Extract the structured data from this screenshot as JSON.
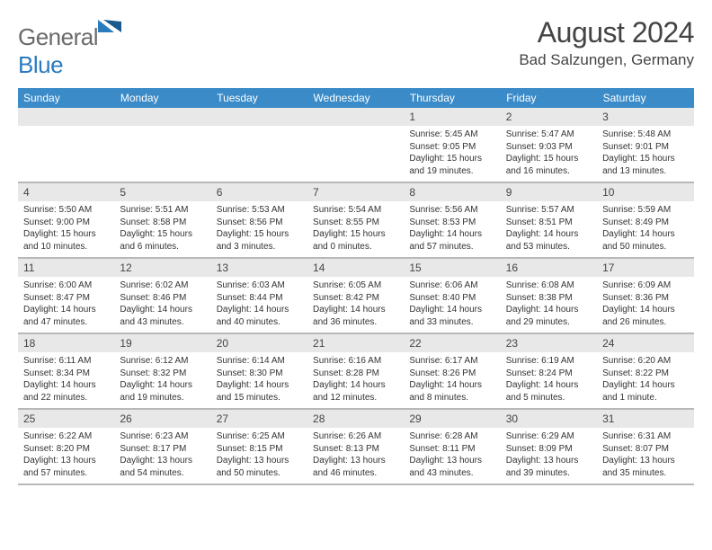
{
  "logo": {
    "text1": "General",
    "text2": "Blue",
    "icon_color": "#2b7bbf"
  },
  "title": "August 2024",
  "subtitle": "Bad Salzungen, Germany",
  "colors": {
    "header_bg": "#3b8bc8",
    "header_text": "#ffffff",
    "daynum_bg": "#e8e8e8",
    "text": "#333333",
    "divider": "#b8b8b8"
  },
  "weekdays": [
    "Sunday",
    "Monday",
    "Tuesday",
    "Wednesday",
    "Thursday",
    "Friday",
    "Saturday"
  ],
  "weeks": [
    [
      {
        "n": "",
        "sunrise": "",
        "sunset": "",
        "daylight": ""
      },
      {
        "n": "",
        "sunrise": "",
        "sunset": "",
        "daylight": ""
      },
      {
        "n": "",
        "sunrise": "",
        "sunset": "",
        "daylight": ""
      },
      {
        "n": "",
        "sunrise": "",
        "sunset": "",
        "daylight": ""
      },
      {
        "n": "1",
        "sunrise": "Sunrise: 5:45 AM",
        "sunset": "Sunset: 9:05 PM",
        "daylight": "Daylight: 15 hours and 19 minutes."
      },
      {
        "n": "2",
        "sunrise": "Sunrise: 5:47 AM",
        "sunset": "Sunset: 9:03 PM",
        "daylight": "Daylight: 15 hours and 16 minutes."
      },
      {
        "n": "3",
        "sunrise": "Sunrise: 5:48 AM",
        "sunset": "Sunset: 9:01 PM",
        "daylight": "Daylight: 15 hours and 13 minutes."
      }
    ],
    [
      {
        "n": "4",
        "sunrise": "Sunrise: 5:50 AM",
        "sunset": "Sunset: 9:00 PM",
        "daylight": "Daylight: 15 hours and 10 minutes."
      },
      {
        "n": "5",
        "sunrise": "Sunrise: 5:51 AM",
        "sunset": "Sunset: 8:58 PM",
        "daylight": "Daylight: 15 hours and 6 minutes."
      },
      {
        "n": "6",
        "sunrise": "Sunrise: 5:53 AM",
        "sunset": "Sunset: 8:56 PM",
        "daylight": "Daylight: 15 hours and 3 minutes."
      },
      {
        "n": "7",
        "sunrise": "Sunrise: 5:54 AM",
        "sunset": "Sunset: 8:55 PM",
        "daylight": "Daylight: 15 hours and 0 minutes."
      },
      {
        "n": "8",
        "sunrise": "Sunrise: 5:56 AM",
        "sunset": "Sunset: 8:53 PM",
        "daylight": "Daylight: 14 hours and 57 minutes."
      },
      {
        "n": "9",
        "sunrise": "Sunrise: 5:57 AM",
        "sunset": "Sunset: 8:51 PM",
        "daylight": "Daylight: 14 hours and 53 minutes."
      },
      {
        "n": "10",
        "sunrise": "Sunrise: 5:59 AM",
        "sunset": "Sunset: 8:49 PM",
        "daylight": "Daylight: 14 hours and 50 minutes."
      }
    ],
    [
      {
        "n": "11",
        "sunrise": "Sunrise: 6:00 AM",
        "sunset": "Sunset: 8:47 PM",
        "daylight": "Daylight: 14 hours and 47 minutes."
      },
      {
        "n": "12",
        "sunrise": "Sunrise: 6:02 AM",
        "sunset": "Sunset: 8:46 PM",
        "daylight": "Daylight: 14 hours and 43 minutes."
      },
      {
        "n": "13",
        "sunrise": "Sunrise: 6:03 AM",
        "sunset": "Sunset: 8:44 PM",
        "daylight": "Daylight: 14 hours and 40 minutes."
      },
      {
        "n": "14",
        "sunrise": "Sunrise: 6:05 AM",
        "sunset": "Sunset: 8:42 PM",
        "daylight": "Daylight: 14 hours and 36 minutes."
      },
      {
        "n": "15",
        "sunrise": "Sunrise: 6:06 AM",
        "sunset": "Sunset: 8:40 PM",
        "daylight": "Daylight: 14 hours and 33 minutes."
      },
      {
        "n": "16",
        "sunrise": "Sunrise: 6:08 AM",
        "sunset": "Sunset: 8:38 PM",
        "daylight": "Daylight: 14 hours and 29 minutes."
      },
      {
        "n": "17",
        "sunrise": "Sunrise: 6:09 AM",
        "sunset": "Sunset: 8:36 PM",
        "daylight": "Daylight: 14 hours and 26 minutes."
      }
    ],
    [
      {
        "n": "18",
        "sunrise": "Sunrise: 6:11 AM",
        "sunset": "Sunset: 8:34 PM",
        "daylight": "Daylight: 14 hours and 22 minutes."
      },
      {
        "n": "19",
        "sunrise": "Sunrise: 6:12 AM",
        "sunset": "Sunset: 8:32 PM",
        "daylight": "Daylight: 14 hours and 19 minutes."
      },
      {
        "n": "20",
        "sunrise": "Sunrise: 6:14 AM",
        "sunset": "Sunset: 8:30 PM",
        "daylight": "Daylight: 14 hours and 15 minutes."
      },
      {
        "n": "21",
        "sunrise": "Sunrise: 6:16 AM",
        "sunset": "Sunset: 8:28 PM",
        "daylight": "Daylight: 14 hours and 12 minutes."
      },
      {
        "n": "22",
        "sunrise": "Sunrise: 6:17 AM",
        "sunset": "Sunset: 8:26 PM",
        "daylight": "Daylight: 14 hours and 8 minutes."
      },
      {
        "n": "23",
        "sunrise": "Sunrise: 6:19 AM",
        "sunset": "Sunset: 8:24 PM",
        "daylight": "Daylight: 14 hours and 5 minutes."
      },
      {
        "n": "24",
        "sunrise": "Sunrise: 6:20 AM",
        "sunset": "Sunset: 8:22 PM",
        "daylight": "Daylight: 14 hours and 1 minute."
      }
    ],
    [
      {
        "n": "25",
        "sunrise": "Sunrise: 6:22 AM",
        "sunset": "Sunset: 8:20 PM",
        "daylight": "Daylight: 13 hours and 57 minutes."
      },
      {
        "n": "26",
        "sunrise": "Sunrise: 6:23 AM",
        "sunset": "Sunset: 8:17 PM",
        "daylight": "Daylight: 13 hours and 54 minutes."
      },
      {
        "n": "27",
        "sunrise": "Sunrise: 6:25 AM",
        "sunset": "Sunset: 8:15 PM",
        "daylight": "Daylight: 13 hours and 50 minutes."
      },
      {
        "n": "28",
        "sunrise": "Sunrise: 6:26 AM",
        "sunset": "Sunset: 8:13 PM",
        "daylight": "Daylight: 13 hours and 46 minutes."
      },
      {
        "n": "29",
        "sunrise": "Sunrise: 6:28 AM",
        "sunset": "Sunset: 8:11 PM",
        "daylight": "Daylight: 13 hours and 43 minutes."
      },
      {
        "n": "30",
        "sunrise": "Sunrise: 6:29 AM",
        "sunset": "Sunset: 8:09 PM",
        "daylight": "Daylight: 13 hours and 39 minutes."
      },
      {
        "n": "31",
        "sunrise": "Sunrise: 6:31 AM",
        "sunset": "Sunset: 8:07 PM",
        "daylight": "Daylight: 13 hours and 35 minutes."
      }
    ]
  ]
}
